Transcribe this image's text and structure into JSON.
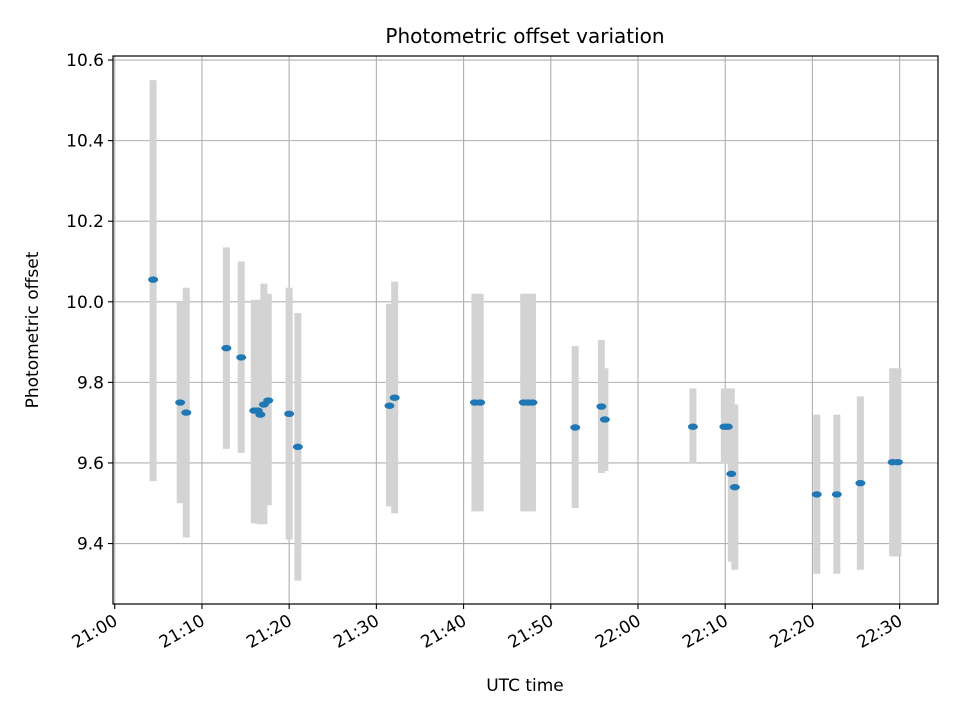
{
  "chart_data": {
    "type": "scatter",
    "title": "Photometric offset variation",
    "xlabel": "UTC time",
    "ylabel": "Photometric offset",
    "x_unit": "HH:MM",
    "xlim": [
      "20:59.8",
      "22:34.4"
    ],
    "ylim": [
      9.25,
      10.61
    ],
    "grid": true,
    "x_ticks": [
      "21:00",
      "21:10",
      "21:20",
      "21:30",
      "21:40",
      "21:50",
      "22:00",
      "22:10",
      "22:20",
      "22:30"
    ],
    "y_ticks": [
      9.4,
      9.6,
      9.8,
      10.0,
      10.2,
      10.4,
      10.6
    ],
    "y_tick_labels": [
      "9.4",
      "9.6",
      "9.8",
      "10.0",
      "10.2",
      "10.4",
      "10.6"
    ],
    "colors": {
      "points": "#1f77b4",
      "error_bars": "#d3d3d3",
      "grid": "#b0b0b0"
    },
    "points": [
      {
        "x": "21:04.4",
        "y": 10.055,
        "ylow": 9.555,
        "yhigh": 10.55
      },
      {
        "x": "21:07.5",
        "y": 9.75,
        "ylow": 9.5,
        "yhigh": 10.0
      },
      {
        "x": "21:08.2",
        "y": 9.725,
        "ylow": 9.415,
        "yhigh": 10.035
      },
      {
        "x": "21:12.8",
        "y": 9.885,
        "ylow": 9.635,
        "yhigh": 10.135
      },
      {
        "x": "21:14.5",
        "y": 9.862,
        "ylow": 9.625,
        "yhigh": 10.1
      },
      {
        "x": "21:16.0",
        "y": 9.73,
        "ylow": 9.45,
        "yhigh": 10.005
      },
      {
        "x": "21:16.4",
        "y": 9.73,
        "ylow": 9.45,
        "yhigh": 10.005
      },
      {
        "x": "21:16.7",
        "y": 9.72,
        "ylow": 9.448,
        "yhigh": 9.995
      },
      {
        "x": "21:17.1",
        "y": 9.745,
        "ylow": 9.448,
        "yhigh": 10.045
      },
      {
        "x": "21:17.6",
        "y": 9.755,
        "ylow": 9.495,
        "yhigh": 10.02
      },
      {
        "x": "21:20.0",
        "y": 9.722,
        "ylow": 9.41,
        "yhigh": 10.035
      },
      {
        "x": "21:21.0",
        "y": 9.64,
        "ylow": 9.308,
        "yhigh": 9.972
      },
      {
        "x": "21:31.5",
        "y": 9.742,
        "ylow": 9.492,
        "yhigh": 9.995
      },
      {
        "x": "21:32.1",
        "y": 9.762,
        "ylow": 9.475,
        "yhigh": 10.05
      },
      {
        "x": "21:41.3",
        "y": 9.75,
        "ylow": 9.48,
        "yhigh": 10.02
      },
      {
        "x": "21:41.9",
        "y": 9.75,
        "ylow": 9.48,
        "yhigh": 10.02
      },
      {
        "x": "21:46.9",
        "y": 9.75,
        "ylow": 9.48,
        "yhigh": 10.02
      },
      {
        "x": "21:47.4",
        "y": 9.75,
        "ylow": 9.48,
        "yhigh": 10.02
      },
      {
        "x": "21:47.9",
        "y": 9.75,
        "ylow": 9.48,
        "yhigh": 10.02
      },
      {
        "x": "21:52.8",
        "y": 9.688,
        "ylow": 9.488,
        "yhigh": 9.89
      },
      {
        "x": "21:55.8",
        "y": 9.74,
        "ylow": 9.575,
        "yhigh": 9.905
      },
      {
        "x": "21:56.2",
        "y": 9.708,
        "ylow": 9.58,
        "yhigh": 9.835
      },
      {
        "x": "22:06.3",
        "y": 9.69,
        "ylow": 9.598,
        "yhigh": 9.785
      },
      {
        "x": "22:09.9",
        "y": 9.69,
        "ylow": 9.598,
        "yhigh": 9.785
      },
      {
        "x": "22:10.3",
        "y": 9.69,
        "ylow": 9.598,
        "yhigh": 9.785
      },
      {
        "x": "22:10.7",
        "y": 9.573,
        "ylow": 9.355,
        "yhigh": 9.785
      },
      {
        "x": "22:11.1",
        "y": 9.54,
        "ylow": 9.335,
        "yhigh": 9.745
      },
      {
        "x": "22:20.5",
        "y": 9.522,
        "ylow": 9.325,
        "yhigh": 9.72
      },
      {
        "x": "22:22.8",
        "y": 9.522,
        "ylow": 9.325,
        "yhigh": 9.72
      },
      {
        "x": "22:25.5",
        "y": 9.55,
        "ylow": 9.335,
        "yhigh": 9.765
      },
      {
        "x": "22:29.2",
        "y": 9.602,
        "ylow": 9.368,
        "yhigh": 9.835
      },
      {
        "x": "22:29.8",
        "y": 9.602,
        "ylow": 9.368,
        "yhigh": 9.835
      }
    ]
  }
}
